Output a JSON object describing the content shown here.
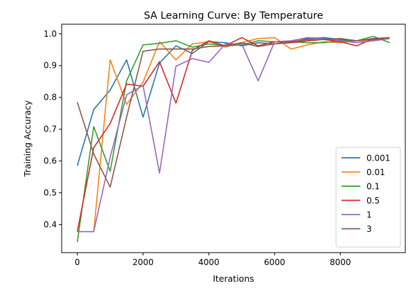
{
  "chart_data": {
    "type": "line",
    "title": "SA Learning Curve: By Temperature",
    "xlabel": "Iterations",
    "ylabel": "Training Accuracy",
    "xlim": [
      -475,
      9975
    ],
    "ylim": [
      0.312,
      1.03
    ],
    "xticks": [
      0,
      2000,
      4000,
      6000,
      8000
    ],
    "yticks": [
      0.4,
      0.5,
      0.6,
      0.7,
      0.8,
      0.9,
      1.0
    ],
    "xtick_labels": [
      "0",
      "2000",
      "4000",
      "6000",
      "8000"
    ],
    "ytick_labels": [
      "0.4",
      "0.5",
      "0.6",
      "0.7",
      "0.8",
      "0.9",
      "1.0"
    ],
    "grid": false,
    "legend_position": "lower-right",
    "x": [
      0,
      500,
      1000,
      1500,
      2000,
      2500,
      3000,
      3500,
      4000,
      4500,
      5000,
      5500,
      6000,
      6500,
      7000,
      7500,
      8000,
      8500,
      9000,
      9500
    ],
    "series": [
      {
        "name": "0.001",
        "color": "#1f77b4",
        "values": [
          0.585,
          0.762,
          0.823,
          0.918,
          0.738,
          0.908,
          0.962,
          0.938,
          0.975,
          0.972,
          0.962,
          0.972,
          0.968,
          0.972,
          0.985,
          0.988,
          0.982,
          0.978,
          0.982,
          0.985
        ]
      },
      {
        "name": "0.01",
        "color": "#ff7f0e",
        "values": [
          0.378,
          0.378,
          0.918,
          0.778,
          0.848,
          0.975,
          0.918,
          0.968,
          0.975,
          0.958,
          0.972,
          0.985,
          0.988,
          0.952,
          0.965,
          0.975,
          0.972,
          0.978,
          0.978,
          0.985
        ]
      },
      {
        "name": "0.1",
        "color": "#2ca02c",
        "values": [
          0.345,
          0.708,
          0.568,
          0.852,
          0.965,
          0.97,
          0.978,
          0.958,
          0.968,
          0.962,
          0.965,
          0.978,
          0.975,
          0.975,
          0.972,
          0.972,
          0.978,
          0.978,
          0.992,
          0.972
        ]
      },
      {
        "name": "0.5",
        "color": "#d62728",
        "values": [
          0.378,
          0.642,
          0.718,
          0.842,
          0.835,
          0.912,
          0.782,
          0.948,
          0.978,
          0.962,
          0.988,
          0.962,
          0.975,
          0.972,
          0.978,
          0.982,
          0.975,
          0.962,
          0.985,
          0.985
        ]
      },
      {
        "name": "1",
        "color": "#9467bd",
        "values": [
          0.378,
          0.378,
          0.612,
          0.808,
          0.838,
          0.562,
          0.898,
          0.922,
          0.91,
          0.968,
          0.968,
          0.852,
          0.975,
          0.978,
          0.988,
          0.985,
          0.978,
          0.972,
          0.978,
          0.985
        ]
      },
      {
        "name": "3",
        "color": "#8c564b",
        "values": [
          0.785,
          0.622,
          0.518,
          0.738,
          0.945,
          0.952,
          0.952,
          0.952,
          0.96,
          0.962,
          0.972,
          0.96,
          0.968,
          0.975,
          0.982,
          0.982,
          0.985,
          0.978,
          0.985,
          0.988
        ]
      }
    ]
  }
}
